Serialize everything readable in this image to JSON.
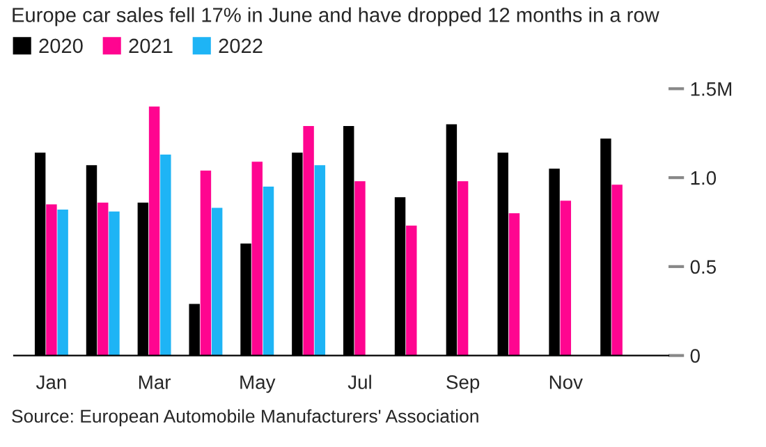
{
  "chart_data": {
    "type": "bar",
    "title": "Europe car sales fell 17% in June and have dropped 12 months in a row",
    "categories": [
      "Jan",
      null,
      "Mar",
      null,
      "May",
      null,
      "Jul",
      null,
      "Sep",
      null,
      "Nov",
      null
    ],
    "series": [
      {
        "name": "2020",
        "color": "#000000",
        "values": [
          1.14,
          1.07,
          0.86,
          0.29,
          0.63,
          1.14,
          1.29,
          0.89,
          1.3,
          1.14,
          1.05,
          1.22
        ]
      },
      {
        "name": "2021",
        "color": "#ff0590",
        "values": [
          0.85,
          0.86,
          1.4,
          1.04,
          1.09,
          1.29,
          0.98,
          0.73,
          0.98,
          0.8,
          0.87,
          0.96
        ]
      },
      {
        "name": "2022",
        "color": "#1eb4f5",
        "values": [
          0.82,
          0.81,
          1.13,
          0.83,
          0.95,
          1.07,
          null,
          null,
          null,
          null,
          null,
          null
        ]
      }
    ],
    "ylim": [
      0,
      1.5
    ],
    "yticks": [
      0,
      0.5,
      {
        "value": 1.0,
        "label": "1.0"
      },
      {
        "value": 1.5,
        "label": "1.5M"
      }
    ],
    "grid": false,
    "legend": "top left",
    "annotations": [
      "Source: European Automobile Manufacturers' Association"
    ]
  }
}
